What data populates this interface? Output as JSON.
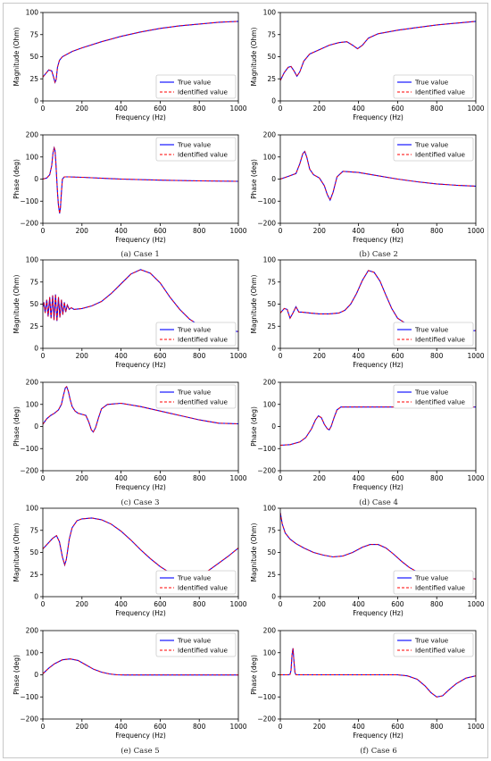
{
  "chart_data": [
    {
      "type": "line",
      "panel": "a-top",
      "xlabel": "Frequency (Hz)",
      "ylabel": "Magnitude (Ohm)",
      "xlim": [
        0,
        1000
      ],
      "ylim": [
        0,
        100
      ],
      "xticks": [
        0,
        200,
        400,
        600,
        800,
        1000
      ],
      "yticks": [
        0,
        25,
        50,
        75,
        100
      ],
      "legend": "bottom-right",
      "series": [
        {
          "name": "True value",
          "color": "#0000ff",
          "style": "solid"
        },
        {
          "name": "Identified value",
          "color": "#ff0000",
          "style": "dashed"
        }
      ],
      "x": [
        0,
        15,
        30,
        45,
        55,
        62,
        68,
        75,
        85,
        100,
        150,
        200,
        300,
        400,
        500,
        600,
        700,
        800,
        900,
        1000
      ],
      "y": [
        27,
        31,
        35,
        34,
        27,
        21,
        24,
        38,
        46,
        50,
        56,
        60,
        67,
        73,
        78,
        82,
        85,
        87,
        89,
        90
      ]
    },
    {
      "type": "line",
      "panel": "a-bottom",
      "xlabel": "Frequency (Hz)",
      "ylabel": "Phase (deg)",
      "xlim": [
        0,
        1000
      ],
      "ylim": [
        -200,
        200
      ],
      "xticks": [
        0,
        200,
        400,
        600,
        800,
        1000
      ],
      "yticks": [
        -200,
        -100,
        0,
        100,
        200
      ],
      "legend": "top-right",
      "series": [
        {
          "name": "True value",
          "color": "#0000ff",
          "style": "solid"
        },
        {
          "name": "Identified value",
          "color": "#ff0000",
          "style": "dashed"
        }
      ],
      "x": [
        0,
        20,
        35,
        45,
        52,
        58,
        62,
        66,
        70,
        75,
        80,
        86,
        90,
        95,
        100,
        110,
        130,
        200,
        400,
        600,
        800,
        1000
      ],
      "y": [
        0,
        5,
        20,
        60,
        120,
        142,
        130,
        80,
        20,
        -60,
        -120,
        -155,
        -130,
        -60,
        0,
        10,
        10,
        8,
        0,
        -5,
        -8,
        -10
      ]
    },
    {
      "type": "line",
      "panel": "b-top",
      "xlabel": "Frequency (Hz)",
      "ylabel": "Magnitude (Ohm)",
      "xlim": [
        0,
        1000
      ],
      "ylim": [
        0,
        100
      ],
      "xticks": [
        0,
        200,
        400,
        600,
        800,
        1000
      ],
      "yticks": [
        0,
        25,
        50,
        75,
        100
      ],
      "legend": "bottom-right",
      "series": [
        {
          "name": "True value",
          "color": "#0000ff",
          "style": "solid"
        },
        {
          "name": "Identified value",
          "color": "#ff0000",
          "style": "dashed"
        }
      ],
      "x": [
        0,
        20,
        40,
        55,
        70,
        85,
        100,
        120,
        150,
        200,
        250,
        300,
        340,
        370,
        395,
        420,
        450,
        500,
        600,
        700,
        800,
        900,
        1000
      ],
      "y": [
        23,
        32,
        38,
        39,
        34,
        28,
        33,
        45,
        53,
        58,
        63,
        66,
        67,
        63,
        59,
        63,
        71,
        76,
        80,
        83,
        86,
        88,
        90
      ]
    },
    {
      "type": "line",
      "panel": "b-bottom",
      "xlabel": "Frequency (Hz)",
      "ylabel": "Phase (deg)",
      "xlim": [
        0,
        1000
      ],
      "ylim": [
        -200,
        200
      ],
      "xticks": [
        0,
        200,
        400,
        600,
        800,
        1000
      ],
      "yticks": [
        -200,
        -100,
        0,
        100,
        200
      ],
      "legend": "top-right",
      "series": [
        {
          "name": "True value",
          "color": "#0000ff",
          "style": "solid"
        },
        {
          "name": "Identified value",
          "color": "#ff0000",
          "style": "dashed"
        }
      ],
      "x": [
        0,
        40,
        80,
        100,
        115,
        125,
        135,
        150,
        170,
        200,
        225,
        240,
        255,
        270,
        290,
        320,
        400,
        500,
        600,
        700,
        800,
        900,
        1000
      ],
      "y": [
        0,
        12,
        25,
        70,
        115,
        125,
        100,
        45,
        20,
        5,
        -30,
        -70,
        -95,
        -60,
        10,
        35,
        30,
        15,
        0,
        -12,
        -22,
        -28,
        -32
      ]
    },
    {
      "type": "line",
      "panel": "c-top",
      "xlabel": "Frequency (Hz)",
      "ylabel": "Magnitude (Ohm)",
      "xlim": [
        0,
        1000
      ],
      "ylim": [
        0,
        100
      ],
      "xticks": [
        0,
        200,
        400,
        600,
        800,
        1000
      ],
      "yticks": [
        0,
        25,
        50,
        75,
        100
      ],
      "legend": "bottom-right",
      "series": [
        {
          "name": "True value",
          "color": "#0000ff",
          "style": "solid"
        },
        {
          "name": "Identified value",
          "color": "#ff0000",
          "style": "dashed"
        }
      ],
      "x": [
        0,
        5,
        12,
        20,
        27,
        35,
        42,
        50,
        57,
        65,
        72,
        80,
        87,
        95,
        102,
        110,
        117,
        125,
        135,
        145,
        160,
        200,
        250,
        300,
        350,
        400,
        450,
        500,
        550,
        600,
        650,
        700,
        750,
        800,
        850,
        900,
        950,
        1000
      ],
      "y": [
        47,
        52,
        40,
        55,
        36,
        58,
        34,
        60,
        32,
        61,
        31,
        58,
        35,
        55,
        38,
        52,
        41,
        49,
        44,
        46,
        44,
        45,
        48,
        53,
        62,
        73,
        84,
        89,
        85,
        74,
        58,
        44,
        33,
        26,
        23,
        21,
        20,
        19
      ]
    },
    {
      "type": "line",
      "panel": "c-bottom",
      "xlabel": "Frequency (Hz)",
      "ylabel": "Phase (deg)",
      "xlim": [
        0,
        1000
      ],
      "ylim": [
        -200,
        200
      ],
      "xticks": [
        0,
        200,
        400,
        600,
        800,
        1000
      ],
      "yticks": [
        -200,
        -100,
        0,
        100,
        200
      ],
      "legend": "top-right",
      "series": [
        {
          "name": "True value",
          "color": "#0000ff",
          "style": "solid"
        },
        {
          "name": "Identified value",
          "color": "#ff0000",
          "style": "dashed"
        }
      ],
      "x": [
        0,
        20,
        40,
        60,
        80,
        95,
        105,
        115,
        122,
        130,
        140,
        150,
        165,
        180,
        200,
        220,
        235,
        248,
        258,
        270,
        285,
        300,
        330,
        400,
        500,
        600,
        700,
        800,
        900,
        1000
      ],
      "y": [
        10,
        35,
        50,
        60,
        75,
        100,
        140,
        175,
        180,
        160,
        120,
        90,
        70,
        60,
        55,
        50,
        20,
        -15,
        -25,
        -5,
        40,
        80,
        100,
        105,
        90,
        70,
        50,
        30,
        15,
        12
      ]
    },
    {
      "type": "line",
      "panel": "d-top",
      "xlabel": "Frequency (Hz)",
      "ylabel": "Magnitude (Ohm)",
      "xlim": [
        0,
        1000
      ],
      "ylim": [
        0,
        100
      ],
      "xticks": [
        0,
        200,
        400,
        600,
        800,
        1000
      ],
      "yticks": [
        0,
        25,
        50,
        75,
        100
      ],
      "legend": "bottom-right",
      "series": [
        {
          "name": "True value",
          "color": "#0000ff",
          "style": "solid"
        },
        {
          "name": "Identified value",
          "color": "#ff0000",
          "style": "dashed"
        }
      ],
      "x": [
        0,
        20,
        35,
        50,
        65,
        80,
        95,
        110,
        150,
        200,
        250,
        300,
        330,
        360,
        390,
        420,
        450,
        480,
        510,
        540,
        570,
        600,
        650,
        700,
        750,
        800,
        850,
        900,
        950,
        1000
      ],
      "y": [
        40,
        45,
        44,
        34,
        40,
        47,
        41,
        41,
        40,
        39,
        39,
        40,
        43,
        50,
        62,
        77,
        88,
        86,
        76,
        60,
        45,
        34,
        27,
        24,
        22,
        21,
        21,
        20,
        20,
        20
      ]
    },
    {
      "type": "line",
      "panel": "d-bottom",
      "xlabel": "Frequency (Hz)",
      "ylabel": "Phase (deg)",
      "xlim": [
        0,
        1000
      ],
      "ylim": [
        -200,
        200
      ],
      "xticks": [
        0,
        200,
        400,
        600,
        800,
        1000
      ],
      "yticks": [
        -200,
        -100,
        0,
        100,
        200
      ],
      "legend": "top-right",
      "series": [
        {
          "name": "True value",
          "color": "#0000ff",
          "style": "solid"
        },
        {
          "name": "Identified value",
          "color": "#ff0000",
          "style": "dashed"
        }
      ],
      "x": [
        0,
        50,
        100,
        130,
        160,
        180,
        195,
        210,
        225,
        240,
        250,
        260,
        275,
        290,
        310,
        330,
        360,
        400,
        500,
        600,
        700,
        800,
        900,
        1000
      ],
      "y": [
        -85,
        -82,
        -70,
        -50,
        -10,
        30,
        48,
        40,
        10,
        -10,
        -15,
        0,
        40,
        75,
        88,
        88,
        88,
        88,
        88,
        88,
        88,
        88,
        88,
        88
      ]
    },
    {
      "type": "line",
      "panel": "e-top",
      "xlabel": "Frequency (Hz)",
      "ylabel": "Magnitude (Ohm)",
      "xlim": [
        0,
        1000
      ],
      "ylim": [
        0,
        100
      ],
      "xticks": [
        0,
        200,
        400,
        600,
        800,
        1000
      ],
      "yticks": [
        0,
        25,
        50,
        75,
        100
      ],
      "legend": "bottom-right",
      "series": [
        {
          "name": "True value",
          "color": "#0000ff",
          "style": "solid"
        },
        {
          "name": "Identified value",
          "color": "#ff0000",
          "style": "dashed"
        }
      ],
      "x": [
        0,
        25,
        50,
        70,
        85,
        100,
        112,
        120,
        135,
        150,
        175,
        200,
        250,
        300,
        350,
        400,
        450,
        500,
        550,
        600,
        650,
        700,
        750,
        800,
        850,
        900,
        950,
        1000
      ],
      "y": [
        54,
        60,
        66,
        69,
        62,
        45,
        36,
        42,
        65,
        78,
        86,
        88,
        89,
        87,
        82,
        74,
        64,
        53,
        43,
        34,
        27,
        22,
        20,
        22,
        30,
        38,
        46,
        55
      ]
    },
    {
      "type": "line",
      "panel": "e-bottom",
      "xlabel": "Frequency (Hz)",
      "ylabel": "Phase (deg)",
      "xlim": [
        0,
        1000
      ],
      "ylim": [
        -200,
        200
      ],
      "xticks": [
        0,
        200,
        400,
        600,
        800,
        1000
      ],
      "yticks": [
        -200,
        -100,
        0,
        100,
        200
      ],
      "legend": "top-right",
      "series": [
        {
          "name": "True value",
          "color": "#0000ff",
          "style": "solid"
        },
        {
          "name": "Identified value",
          "color": "#ff0000",
          "style": "dashed"
        }
      ],
      "x": [
        0,
        30,
        60,
        100,
        140,
        180,
        220,
        260,
        300,
        340,
        380,
        420,
        500,
        600,
        700,
        800,
        900,
        1000
      ],
      "y": [
        5,
        30,
        50,
        68,
        72,
        65,
        45,
        25,
        12,
        4,
        0,
        -1,
        -1,
        -1,
        -1,
        -1,
        -1,
        -1
      ]
    },
    {
      "type": "line",
      "panel": "f-top",
      "xlabel": "Frequency (Hz)",
      "ylabel": "Magnitude (Ohm)",
      "xlim": [
        0,
        1000
      ],
      "ylim": [
        0,
        100
      ],
      "xticks": [
        0,
        200,
        400,
        600,
        800,
        1000
      ],
      "yticks": [
        0,
        25,
        50,
        75,
        100
      ],
      "legend": "bottom-right",
      "series": [
        {
          "name": "True value",
          "color": "#0000ff",
          "style": "solid"
        },
        {
          "name": "Identified value",
          "color": "#ff0000",
          "style": "dashed"
        }
      ],
      "x": [
        0,
        10,
        25,
        50,
        80,
        120,
        170,
        220,
        270,
        320,
        370,
        420,
        460,
        500,
        540,
        580,
        620,
        660,
        700,
        750,
        800,
        850,
        900,
        950,
        1000
      ],
      "y": [
        95,
        82,
        72,
        65,
        60,
        55,
        50,
        47,
        45,
        46,
        50,
        56,
        59,
        59,
        55,
        48,
        40,
        33,
        28,
        25,
        24,
        23,
        22,
        21,
        20
      ]
    },
    {
      "type": "line",
      "panel": "f-bottom",
      "xlabel": "Frequency (Hz)",
      "ylabel": "Phase (deg)",
      "xlim": [
        0,
        1000
      ],
      "ylim": [
        -200,
        200
      ],
      "xticks": [
        0,
        200,
        400,
        600,
        800,
        1000
      ],
      "yticks": [
        -200,
        -100,
        0,
        100,
        200
      ],
      "legend": "top-right",
      "series": [
        {
          "name": "True value",
          "color": "#0000ff",
          "style": "solid"
        },
        {
          "name": "Identified value",
          "color": "#ff0000",
          "style": "dashed"
        }
      ],
      "x": [
        0,
        40,
        50,
        55,
        60,
        65,
        70,
        75,
        80,
        90,
        100,
        200,
        400,
        600,
        650,
        700,
        740,
        770,
        800,
        830,
        860,
        900,
        950,
        1000
      ],
      "y": [
        0,
        0,
        2,
        20,
        90,
        120,
        60,
        10,
        0,
        0,
        0,
        0,
        0,
        0,
        -5,
        -20,
        -50,
        -80,
        -100,
        -95,
        -70,
        -40,
        -15,
        -5
      ]
    }
  ],
  "captions": {
    "a": "(a) Case 1",
    "b": "(b) Case 2",
    "c": "(c) Case 3",
    "d": "(d) Case 4",
    "e": "(e) Case 5",
    "f": "(f) Case 6"
  }
}
